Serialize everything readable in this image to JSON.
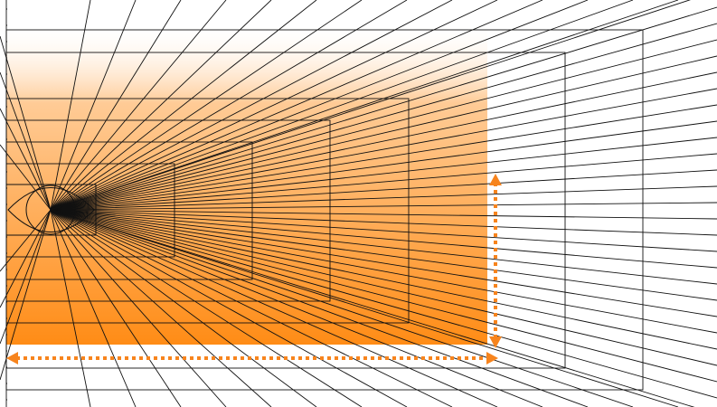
{
  "diagram": {
    "type": "one-point-perspective-grid",
    "colors": {
      "background": "#ffffff",
      "lines": "#111111",
      "accent": "#f7841d",
      "gradient_top": "#ffffff",
      "gradient_bottom": "#ff8c16"
    },
    "icons": [
      "eye-icon",
      "double-arrow-vertical",
      "double-arrow-horizontal"
    ]
  }
}
